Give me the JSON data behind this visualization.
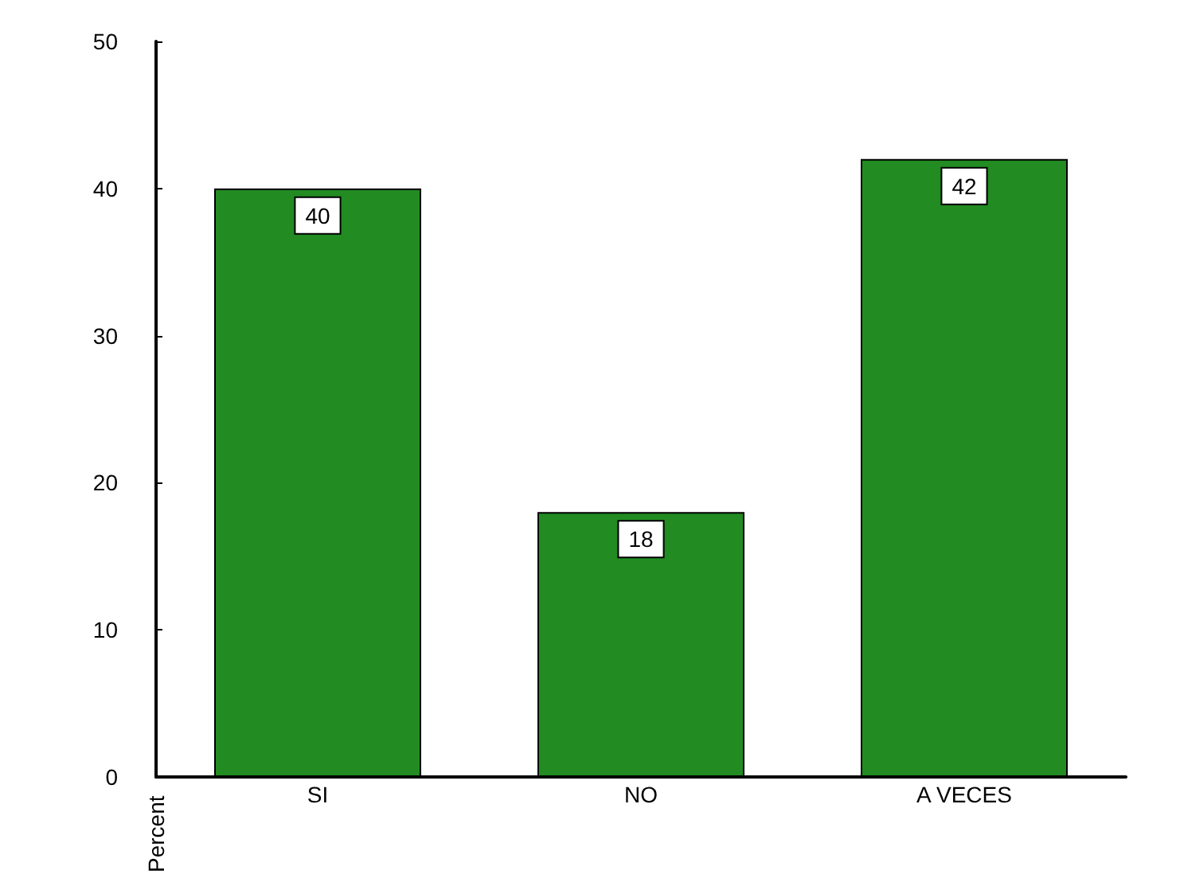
{
  "chart_data": {
    "type": "bar",
    "ylabel": "Percent",
    "categories": [
      "SI",
      "NO",
      "A VECES"
    ],
    "values": [
      40,
      18,
      42
    ],
    "color": "#228b22",
    "ylim": [
      0,
      50
    ],
    "yticks": [
      0,
      10,
      20,
      30,
      40,
      50
    ],
    "grid": false,
    "data_labels": true
  }
}
